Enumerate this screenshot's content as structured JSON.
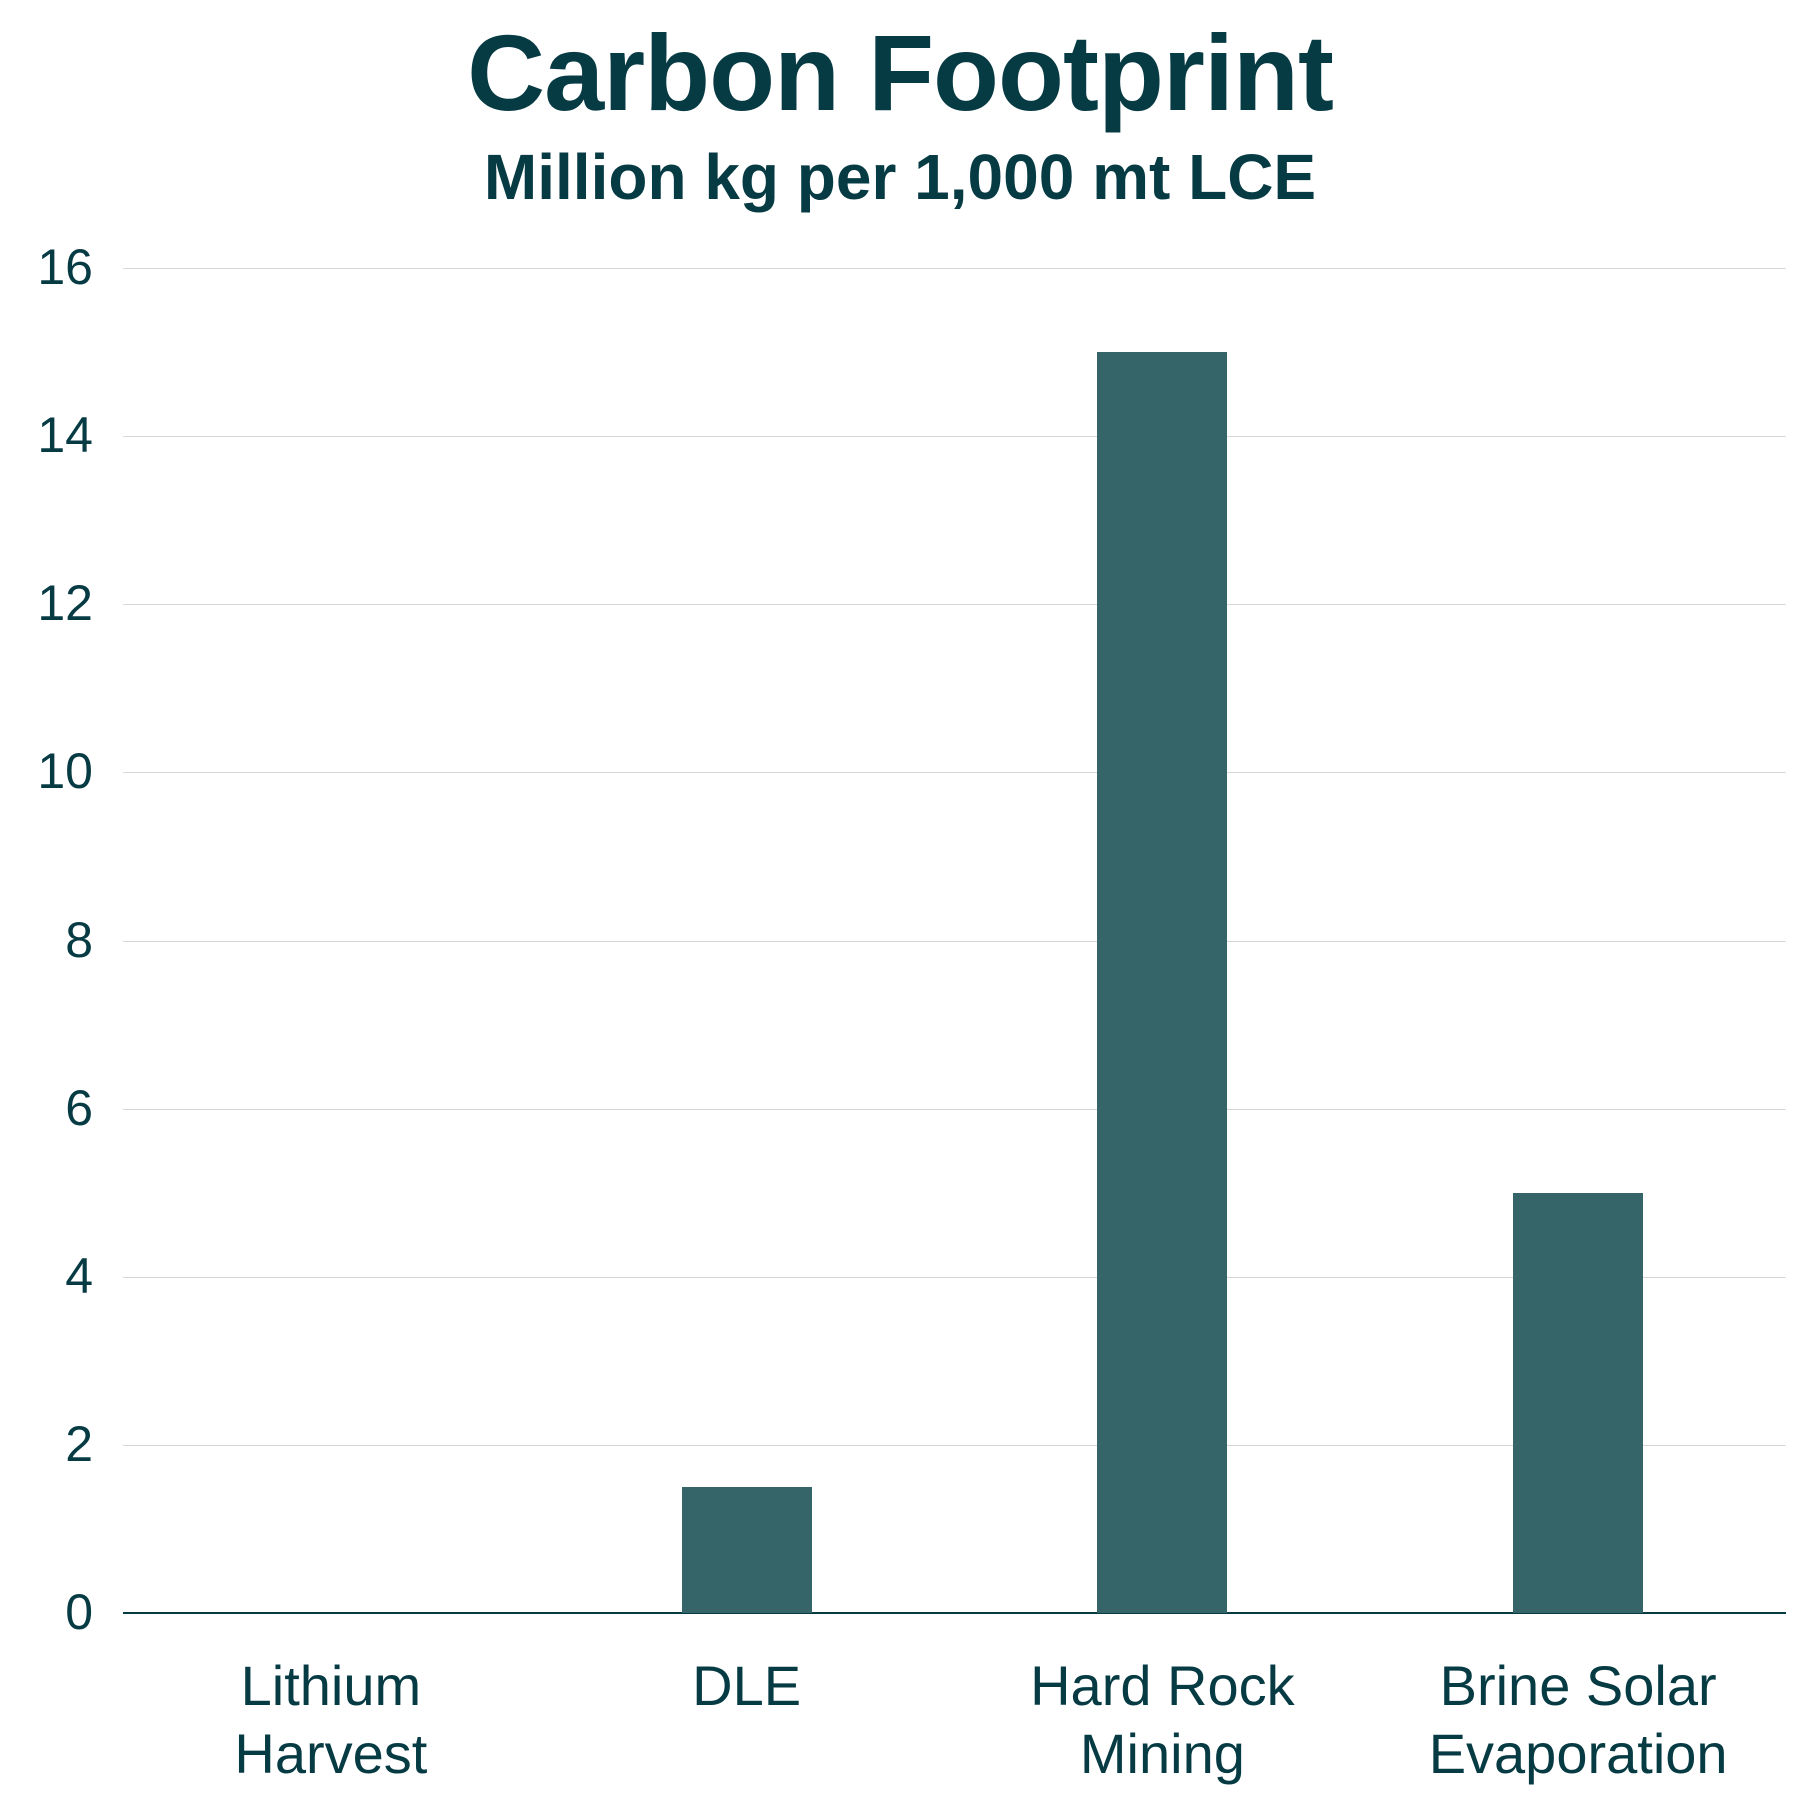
{
  "chart_data": {
    "type": "bar",
    "title": "Carbon Footprint",
    "subtitle": "Million kg per 1,000 mt LCE",
    "xlabel": "",
    "ylabel": "Million kg per 1,000 mt LCE",
    "categories": [
      "Lithium Harvest",
      "DLE",
      "Hard Rock Mining",
      "Brine Solar Evaporation"
    ],
    "category_labels": [
      "Lithium\nHarvest",
      "DLE",
      "Hard Rock\nMining",
      "Brine Solar\nEvaporation"
    ],
    "values": [
      0,
      1.5,
      15,
      5
    ],
    "ylim": [
      0,
      16
    ],
    "yticks": [
      "0",
      "2",
      "4",
      "6",
      "8",
      "10",
      "12",
      "14",
      "16"
    ],
    "grid": true,
    "legend": null,
    "bar_color": "#356469",
    "text_color": "#073b44"
  }
}
